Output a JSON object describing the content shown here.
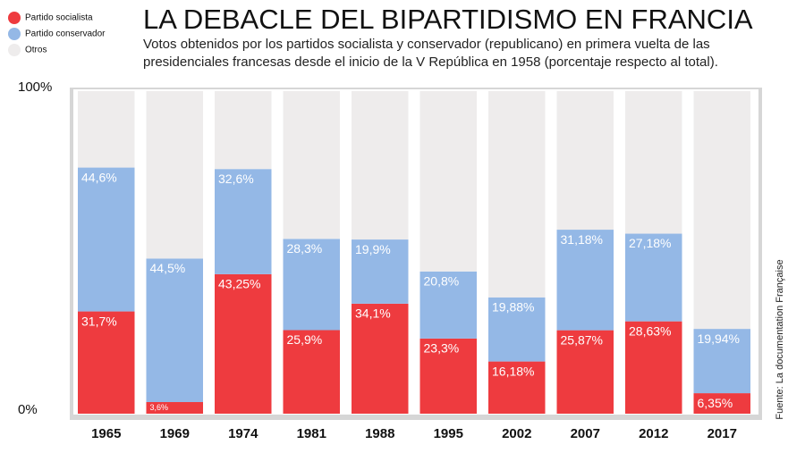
{
  "chart_data": {
    "type": "stacked_bar",
    "title": "LA DEBACLE DEL BIPARTIDISMO EN FRANCIA",
    "subtitle": [
      "Votos obtenidos por los partidos socialista y conservador (republicano) en primera vuelta de las",
      "presidenciales francesas desde el inicio de la V República en 1958 (porcentaje respecto al total)."
    ],
    "source": "Fuente: La documentation Française",
    "categories": [
      "1965",
      "1969",
      "1974",
      "1981",
      "1988",
      "1995",
      "2002",
      "2007",
      "2012",
      "2017"
    ],
    "series": [
      {
        "name": "Partido socialista",
        "color": "#ee3b3f",
        "values": [
          31.7,
          3.6,
          43.25,
          25.9,
          34.1,
          23.3,
          16.18,
          25.87,
          28.63,
          6.35
        ],
        "value_labels": [
          "31,7%",
          "3,6%",
          "43,25%",
          "25,9%",
          "34,1%",
          "23,3%",
          "16,18%",
          "25,87%",
          "28,63%",
          "6,35%"
        ]
      },
      {
        "name": "Partido conservador",
        "color": "#94b8e6",
        "values": [
          44.6,
          44.5,
          32.6,
          28.3,
          19.9,
          20.8,
          19.88,
          31.18,
          27.18,
          19.94
        ],
        "value_labels": [
          "44,6%",
          "44,5%",
          "32,6%",
          "28,3%",
          "19,9%",
          "20,8%",
          "19,88%",
          "31,18%",
          "27,18%",
          "19,94%"
        ]
      },
      {
        "name": "Otros",
        "color": "#eeecec",
        "values": [
          23.7,
          51.9,
          24.15,
          45.8,
          46.0,
          55.9,
          63.94,
          42.95,
          44.19,
          73.71
        ]
      }
    ],
    "ylim": [
      0,
      100
    ],
    "yticks": [
      {
        "value": 0,
        "label": "0%"
      },
      {
        "value": 100,
        "label": "100%"
      }
    ],
    "legend": "top-left"
  }
}
